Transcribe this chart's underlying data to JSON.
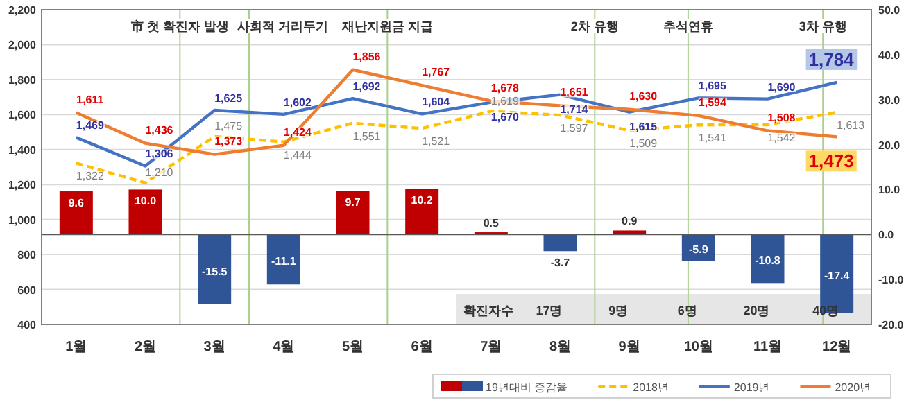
{
  "chart_data": {
    "type": "bar",
    "x": [
      1,
      2,
      3,
      4,
      5,
      6,
      7,
      8,
      9,
      10,
      11,
      12
    ],
    "xlim": [
      0.5,
      12.5
    ],
    "xticks": [
      {
        "value": 1,
        "label": "1월"
      },
      {
        "value": 2,
        "label": "2월"
      },
      {
        "value": 3,
        "label": "3월"
      },
      {
        "value": 4,
        "label": "4월"
      },
      {
        "value": 5,
        "label": "5월"
      },
      {
        "value": 6,
        "label": "6월"
      },
      {
        "value": 7,
        "label": "7월"
      },
      {
        "value": 8,
        "label": "8월"
      },
      {
        "value": 9,
        "label": "9월"
      },
      {
        "value": 10,
        "label": "10월"
      },
      {
        "value": 11,
        "label": "11월"
      },
      {
        "value": 12,
        "label": "12월"
      }
    ],
    "series": [
      {
        "name": "19년대비 증감율",
        "axis": "y2",
        "colors": [
          "#c00000",
          "#c00000",
          "#2f5597",
          "#2f5597",
          "#c00000",
          "#c00000",
          "#c00000",
          "#2f5597",
          "#c00000",
          "#2f5597",
          "#2f5597",
          "#2f5597"
        ],
        "values": [
          9.6,
          10.0,
          -15.5,
          -11.1,
          9.7,
          10.2,
          0.5,
          -3.7,
          0.9,
          -5.9,
          -10.8,
          -17.4
        ],
        "value_labels": [
          "9.6",
          "10.0",
          "-15.5",
          "-11.1",
          "9.7",
          "10.2",
          "0.5",
          "-3.7",
          "0.9",
          "-5.9",
          "-10.8",
          "-17.4"
        ]
      },
      {
        "name": "2018년",
        "type": "line",
        "color": "#ffc000",
        "line_style": "dashed",
        "values": [
          1322,
          1210,
          1475,
          1444,
          1551,
          1521,
          1619,
          1597,
          1509,
          1541,
          1542,
          1613
        ],
        "value_labels": [
          "1,322",
          "1,210",
          "1,475",
          "1,444",
          "1,551",
          "1,521",
          "1,619",
          "1,597",
          "1,509",
          "1,541",
          "1,542",
          "1,613"
        ]
      },
      {
        "name": "2019년",
        "type": "line",
        "color": "#4472c4",
        "line_style": "solid",
        "values": [
          1469,
          1306,
          1625,
          1602,
          1692,
          1604,
          1670,
          1714,
          1615,
          1695,
          1690,
          1784
        ],
        "value_labels": [
          "1,469",
          "1,306",
          "1,625",
          "1,602",
          "1,692",
          "1,604",
          "1,670",
          "1,714",
          "1,615",
          "1,695",
          "1,690",
          "1,784"
        ]
      },
      {
        "name": "2020년",
        "type": "line",
        "color": "#ed7d31",
        "line_style": "solid",
        "values": [
          1611,
          1436,
          1373,
          1424,
          1856,
          1767,
          1678,
          1651,
          1630,
          1594,
          1508,
          1473
        ],
        "value_labels": [
          "1,611",
          "1,436",
          "1,373",
          "1,424",
          "1,856",
          "1,767",
          "1,678",
          "1,651",
          "1,630",
          "1,594",
          "1,508",
          "1,473"
        ]
      }
    ],
    "ylim": [
      400,
      2200
    ],
    "yticks": [
      400,
      600,
      800,
      {
        "value": 1000,
        "label": "1,000"
      },
      {
        "value": 1200,
        "label": "1,200"
      },
      {
        "value": 1400,
        "label": "1,400"
      },
      {
        "value": 1600,
        "label": "1,600"
      },
      {
        "value": 1800,
        "label": "1,800"
      },
      {
        "value": 2000,
        "label": "2,000"
      },
      {
        "value": 2200,
        "label": "2,200"
      }
    ],
    "y2lim": [
      -20,
      50
    ],
    "y2ticks": [
      {
        "value": -20,
        "label": "-20.0"
      },
      {
        "value": -10,
        "label": "-10.0"
      },
      {
        "value": 0,
        "label": "0.0"
      },
      {
        "value": 10,
        "label": "10.0"
      },
      {
        "value": 20,
        "label": "20.0"
      },
      {
        "value": 30,
        "label": "30.0"
      },
      {
        "value": 40,
        "label": "40.0"
      },
      {
        "value": 50,
        "label": "50.0"
      }
    ],
    "ref_lines": [
      {
        "axis": "x",
        "value": 2.5,
        "label": "市 첫 확진자 발생",
        "color": "#a9d18e"
      },
      {
        "axis": "x",
        "value": 3.5,
        "label": "사회적 거리두기",
        "color": "#a9d18e"
      },
      {
        "axis": "x",
        "value": 5.5,
        "label": "재난지원금 지급",
        "color": "#a9d18e"
      },
      {
        "axis": "x",
        "value": 8.5,
        "label": "2차 유행",
        "color": "#a9d18e"
      },
      {
        "axis": "x",
        "value": 9.85,
        "label": "추석연휴",
        "color": "#a9d18e"
      },
      {
        "axis": "x",
        "value": 11.8,
        "label": "3차 유행",
        "color": "#a9d18e"
      }
    ],
    "annotations": [
      "확진자수",
      "17명",
      "9명",
      "6명",
      "20명",
      "40명"
    ],
    "grid": "y",
    "legend": "bottom",
    "marker": "none"
  }
}
